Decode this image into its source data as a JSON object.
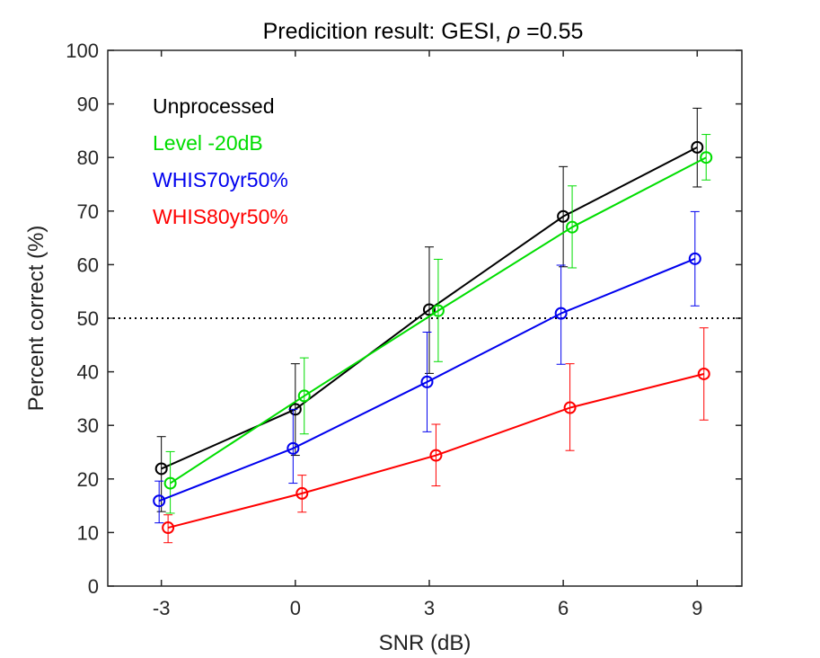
{
  "chart_data": {
    "type": "line",
    "title_prefix": "Predicition result: GESI, ",
    "title_rho": "ρ",
    "title_suffix": " =0.55",
    "xlabel": "SNR (dB)",
    "ylabel": "Percent correct (%)",
    "xlim": [
      -4.2,
      10
    ],
    "ylim": [
      0,
      100
    ],
    "x_ticks": [
      -3,
      0,
      3,
      6,
      9
    ],
    "x_tick_labels": [
      "-3",
      "0",
      "3",
      "6",
      "9"
    ],
    "y_ticks": [
      0,
      10,
      20,
      30,
      40,
      50,
      60,
      70,
      80,
      90,
      100
    ],
    "y_tick_labels": [
      "0",
      "10",
      "20",
      "30",
      "40",
      "50",
      "60",
      "70",
      "80",
      "90",
      "100"
    ],
    "reference_line": {
      "y": 50,
      "style": "dotted",
      "color": "#000000"
    },
    "legend_position": "top-left",
    "grid": false,
    "series": [
      {
        "name": "Unprocessed",
        "color": "#000000",
        "x": [
          -3,
          0,
          3,
          6,
          9
        ],
        "y": [
          21.9,
          33.0,
          51.6,
          69.0,
          81.9
        ],
        "err_low": [
          13.9,
          24.4,
          39.7,
          59.6,
          74.5
        ],
        "err_high": [
          27.9,
          41.5,
          63.3,
          78.3,
          89.2
        ]
      },
      {
        "name": "Level -20dB",
        "color": "#00dd00",
        "x": [
          -2.8,
          0.2,
          3.2,
          6.2,
          9.2
        ],
        "y": [
          19.2,
          35.5,
          51.4,
          67.0,
          80.0
        ],
        "err_low": [
          13.6,
          28.4,
          41.9,
          59.4,
          75.8
        ],
        "err_high": [
          25.1,
          42.6,
          61.0,
          74.7,
          84.3
        ]
      },
      {
        "name": "WHIS70yr50%",
        "color": "#0000ee",
        "x": [
          -3.05,
          -0.05,
          2.95,
          5.95,
          8.95
        ],
        "y": [
          15.9,
          25.7,
          38.1,
          50.9,
          61.1
        ],
        "err_low": [
          11.8,
          19.2,
          28.8,
          41.4,
          52.3
        ],
        "err_high": [
          19.6,
          33.0,
          47.4,
          59.9,
          69.9
        ]
      },
      {
        "name": "WHIS80yr50%",
        "color": "#ff0000",
        "x": [
          -2.85,
          0.15,
          3.15,
          6.15,
          9.15
        ],
        "y": [
          10.9,
          17.3,
          24.4,
          33.3,
          39.6
        ],
        "err_low": [
          8.1,
          13.8,
          18.7,
          25.3,
          31.0
        ],
        "err_high": [
          13.3,
          20.7,
          30.2,
          41.5,
          48.2
        ]
      }
    ]
  }
}
